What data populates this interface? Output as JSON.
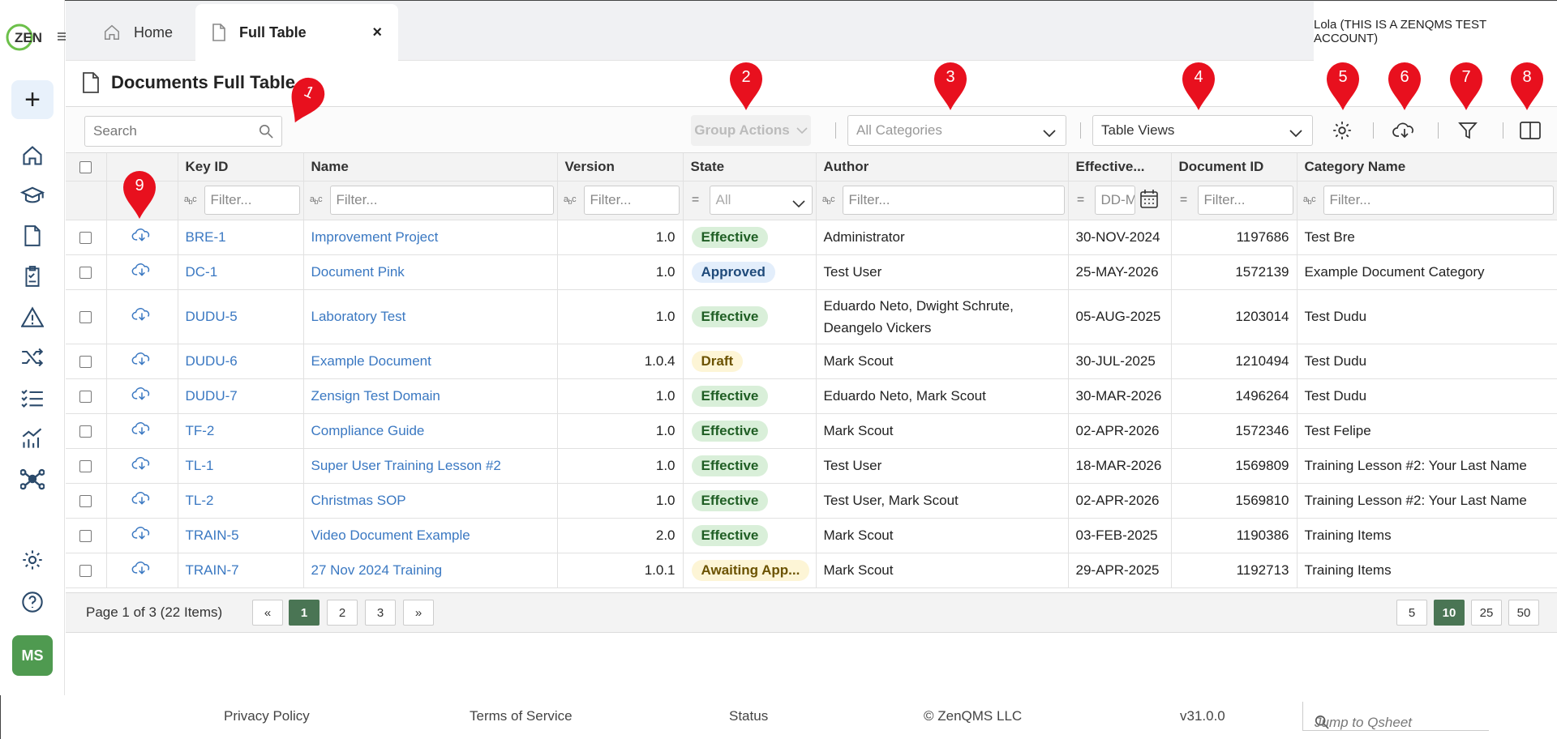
{
  "tabs": {
    "home": "Home",
    "active": "Full Table",
    "close": "×"
  },
  "user_account": "Lola (THIS IS A ZENQMS TEST ACCOUNT)",
  "logo_text": "ZEN",
  "sidebar": {
    "new_label": "+",
    "avatar_initials": "MS"
  },
  "page_title": "Documents Full Table",
  "toolbar": {
    "search_placeholder": "Search",
    "group_actions": "Group Actions",
    "categories_placeholder": "All Categories",
    "table_views": "Table Views"
  },
  "columns": [
    "Key ID",
    "Name",
    "Version",
    "State",
    "Author",
    "Effective...",
    "Document ID",
    "Category Name"
  ],
  "filters": {
    "filter_placeholder": "Filter...",
    "state_all": "All",
    "date_placeholder": "DD-M"
  },
  "rows": [
    {
      "key": "BRE-1",
      "name": "Improvement Project",
      "version": "1.0",
      "state": "Effective",
      "author": "Administrator",
      "effective": "30-NOV-2024",
      "doc_id": "1197686",
      "category": "Test Bre"
    },
    {
      "key": "DC-1",
      "name": "Document Pink",
      "version": "1.0",
      "state": "Approved",
      "author": "Test User",
      "effective": "25-MAY-2026",
      "doc_id": "1572139",
      "category": "Example Document Category"
    },
    {
      "key": "DUDU-5",
      "name": "Laboratory Test",
      "version": "1.0",
      "state": "Effective",
      "author": "Eduardo Neto, Dwight Schrute, Deangelo Vickers",
      "effective": "05-AUG-2025",
      "doc_id": "1203014",
      "category": "Test Dudu"
    },
    {
      "key": "DUDU-6",
      "name": "Example Document",
      "version": "1.0.4",
      "state": "Draft",
      "author": "Mark Scout",
      "effective": "30-JUL-2025",
      "doc_id": "1210494",
      "category": "Test Dudu"
    },
    {
      "key": "DUDU-7",
      "name": "Zensign Test Domain",
      "version": "1.0",
      "state": "Effective",
      "author": "Eduardo Neto, Mark Scout",
      "effective": "30-MAR-2026",
      "doc_id": "1496264",
      "category": "Test Dudu"
    },
    {
      "key": "TF-2",
      "name": "Compliance Guide",
      "version": "1.0",
      "state": "Effective",
      "author": "Mark Scout",
      "effective": "02-APR-2026",
      "doc_id": "1572346",
      "category": "Test Felipe"
    },
    {
      "key": "TL-1",
      "name": "Super User Training Lesson #2",
      "version": "1.0",
      "state": "Effective",
      "author": "Test User",
      "effective": "18-MAR-2026",
      "doc_id": "1569809",
      "category": "Training Lesson #2: Your Last Name"
    },
    {
      "key": "TL-2",
      "name": "Christmas SOP",
      "version": "1.0",
      "state": "Effective",
      "author": "Test User, Mark Scout",
      "effective": "02-APR-2026",
      "doc_id": "1569810",
      "category": "Training Lesson #2: Your Last Name"
    },
    {
      "key": "TRAIN-5",
      "name": "Video Document Example",
      "version": "2.0",
      "state": "Effective",
      "author": "Mark Scout",
      "effective": "03-FEB-2025",
      "doc_id": "1190386",
      "category": "Training Items"
    },
    {
      "key": "TRAIN-7",
      "name": "27 Nov 2024 Training",
      "version": "1.0.1",
      "state": "Awaiting App...",
      "author": "Mark Scout",
      "effective": "29-APR-2025",
      "doc_id": "1192713",
      "category": "Training Items"
    }
  ],
  "state_colors": {
    "Effective": {
      "bg": "#d9efd9",
      "fg": "#1f5e24"
    },
    "Approved": {
      "bg": "#e3eefb",
      "fg": "#1f4a7a"
    },
    "Draft": {
      "bg": "#fdf5d6",
      "fg": "#6b5200"
    },
    "Awaiting App...": {
      "bg": "#fdf5d6",
      "fg": "#6b5200"
    }
  },
  "pagination": {
    "info": "Page 1 of 3 (22 Items)",
    "first": "«",
    "pages": [
      "1",
      "2",
      "3"
    ],
    "next": "»",
    "sizes": [
      "5",
      "10",
      "25",
      "50"
    ],
    "current_page": "1",
    "current_size": "10"
  },
  "footer": {
    "privacy": "Privacy Policy",
    "terms": "Terms of Service",
    "status": "Status",
    "copyright": "© ZenQMS LLC",
    "version": "v31.0.0",
    "jump": "Jump to Qsheet"
  },
  "markers": [
    "1",
    "2",
    "3",
    "4",
    "5",
    "6",
    "7",
    "8",
    "9"
  ],
  "colors": {
    "link": "#3a78c2",
    "accent_green": "#4a7554",
    "marker_red": "#e8101e",
    "avatar_green": "#4f9a50"
  }
}
